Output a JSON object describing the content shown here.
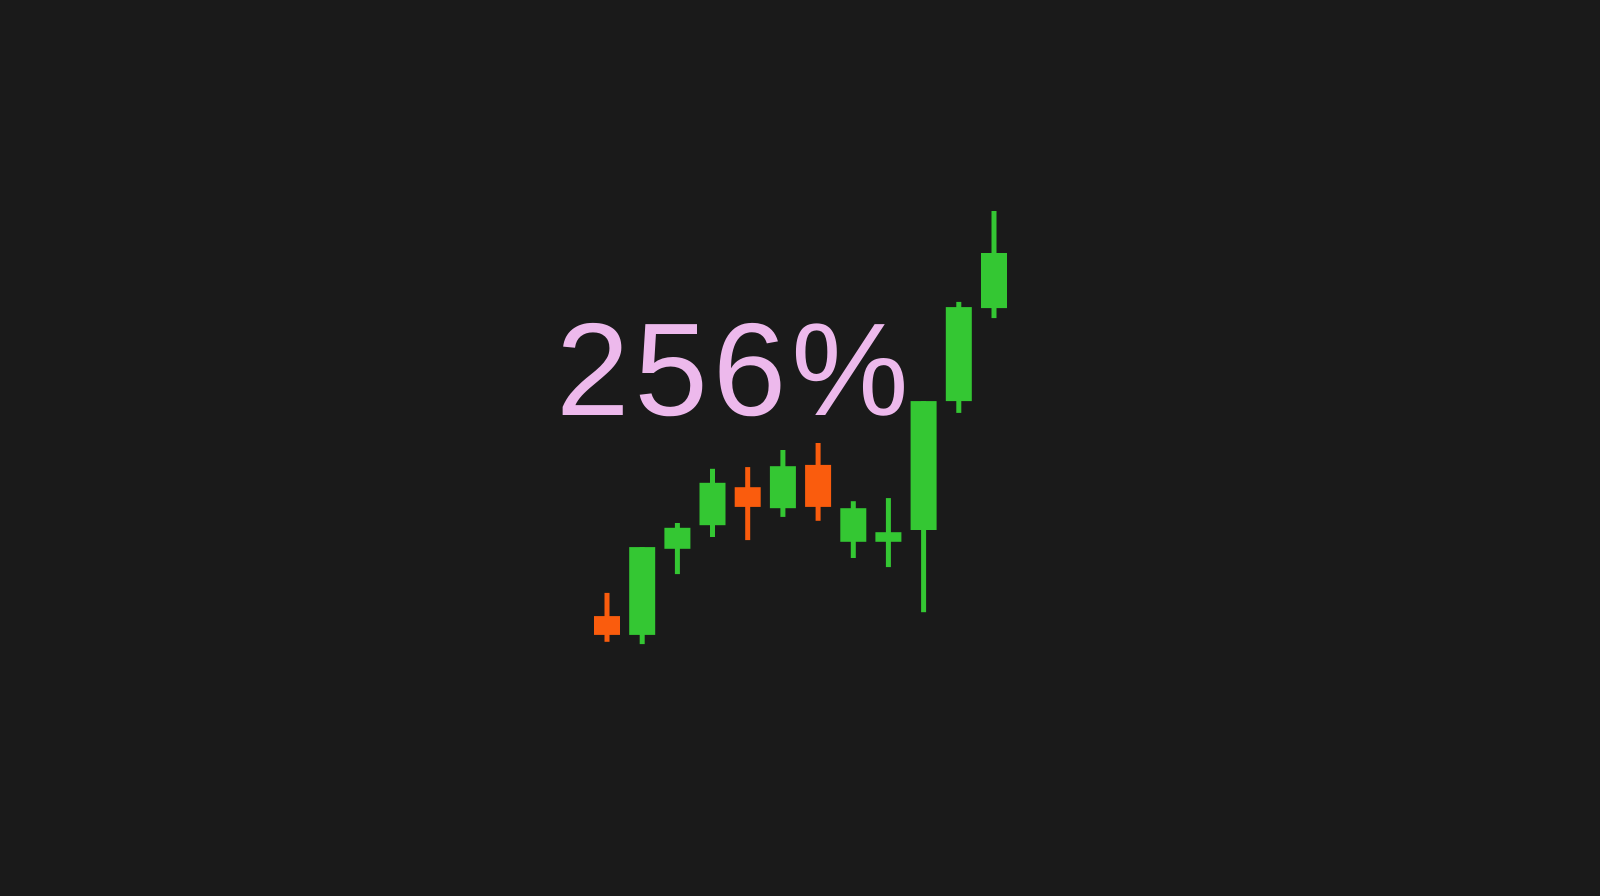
{
  "background_color": "#1a1a1a",
  "headline": {
    "text": "256%",
    "color": "#edb9ec"
  },
  "chart_data": {
    "type": "candlestick",
    "title": "",
    "xlabel": "",
    "ylabel": "",
    "axes_visible": false,
    "grid": false,
    "legend": "none",
    "value_range": [
      0,
      100
    ],
    "up_color": "#34c733",
    "down_color": "#fa5c0d",
    "candles": [
      {
        "index": 1,
        "direction": "down",
        "open": 7.3,
        "high": 12.6,
        "low": 1.4,
        "close": 3.0
      },
      {
        "index": 2,
        "direction": "up",
        "open": 3.0,
        "high": 23.1,
        "low": 0.9,
        "close": 23.1
      },
      {
        "index": 3,
        "direction": "up",
        "open": 22.7,
        "high": 28.6,
        "low": 16.9,
        "close": 27.5
      },
      {
        "index": 4,
        "direction": "up",
        "open": 28.1,
        "high": 41.0,
        "low": 25.4,
        "close": 37.8
      },
      {
        "index": 5,
        "direction": "down",
        "open": 36.8,
        "high": 41.4,
        "low": 24.7,
        "close": 32.3
      },
      {
        "index": 6,
        "direction": "up",
        "open": 32.0,
        "high": 45.3,
        "low": 30.0,
        "close": 41.6
      },
      {
        "index": 7,
        "direction": "down",
        "open": 41.9,
        "high": 46.9,
        "low": 29.1,
        "close": 32.3
      },
      {
        "index": 8,
        "direction": "up",
        "open": 24.3,
        "high": 33.6,
        "low": 20.6,
        "close": 32.0
      },
      {
        "index": 9,
        "direction": "up",
        "open": 24.3,
        "high": 34.3,
        "low": 18.5,
        "close": 26.5
      },
      {
        "index": 10,
        "direction": "up",
        "open": 27.0,
        "high": 56.5,
        "low": 8.2,
        "close": 56.5
      },
      {
        "index": 11,
        "direction": "up",
        "open": 56.5,
        "high": 79.2,
        "low": 53.8,
        "close": 78.0
      },
      {
        "index": 12,
        "direction": "up",
        "open": 77.8,
        "high": 100.0,
        "low": 75.5,
        "close": 90.4
      }
    ]
  }
}
